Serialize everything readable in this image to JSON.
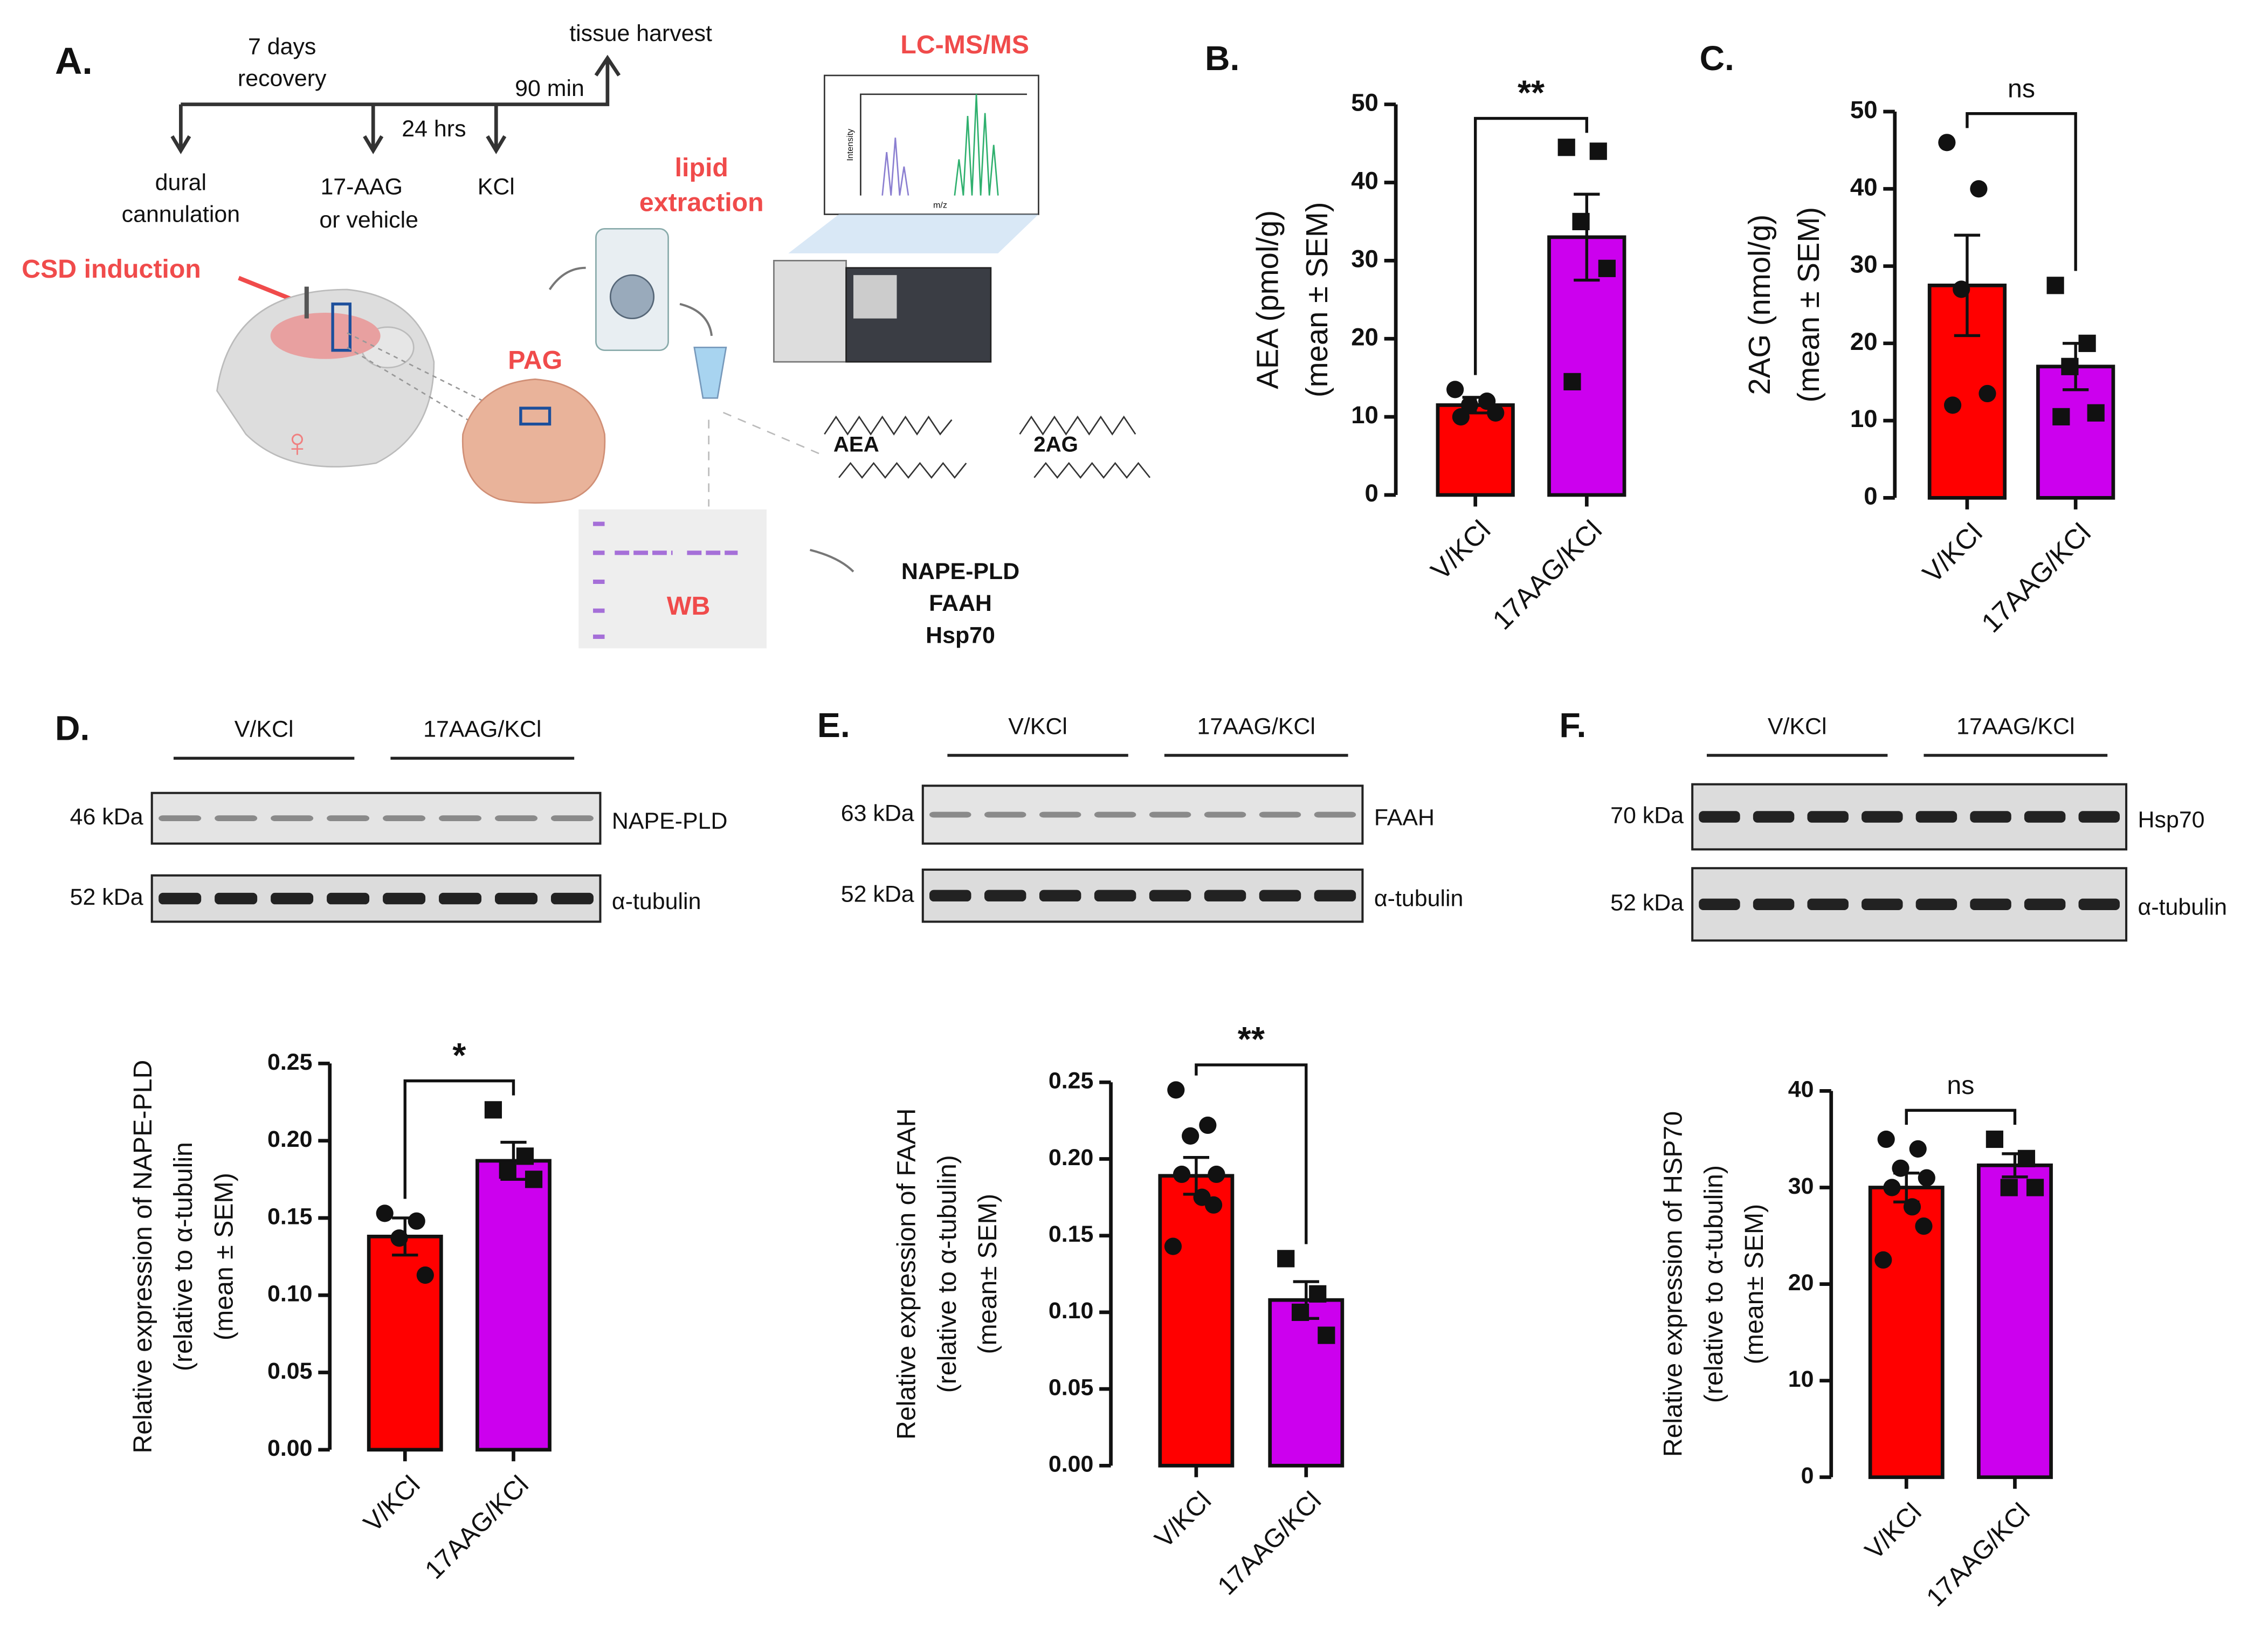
{
  "diagram": {
    "panel": "A.",
    "recovery_1": "7 days",
    "recovery_2": "recovery",
    "harvest": "tissue harvest",
    "hrs": "24 hrs",
    "min": "90 min",
    "cannulation_1": "dural",
    "cannulation_2": "cannulation",
    "drug_1": "17-AAG",
    "drug_2": "or vehicle",
    "kcl": "KCl",
    "csd": "CSD induction",
    "female": "♀",
    "pag": "PAG",
    "lipid_1": "lipid",
    "lipid_2": "extraction",
    "lcms": "LC-MS/MS",
    "intensity": "Intensity",
    "mz": "m/z",
    "aea": "AEA",
    "twoag": "2AG",
    "wb": "WB",
    "targets": [
      "NAPE-PLD",
      "FAAH",
      "Hsp70"
    ]
  },
  "blots": [
    {
      "panel": "D.",
      "groups": [
        "V/KCl",
        "17AAG/KCl"
      ],
      "rows": [
        {
          "kda": "46 kDa",
          "protein": "NAPE-PLD"
        },
        {
          "kda": "52 kDa",
          "protein": "α-tubulin"
        }
      ]
    },
    {
      "panel": "E.",
      "groups": [
        "V/KCl",
        "17AAG/KCl"
      ],
      "rows": [
        {
          "kda": "63 kDa",
          "protein": "FAAH"
        },
        {
          "kda": "52 kDa",
          "protein": "α-tubulin"
        }
      ]
    },
    {
      "panel": "F.",
      "groups": [
        "V/KCl",
        "17AAG/KCl"
      ],
      "rows": [
        {
          "kda": "70 kDa",
          "protein": "Hsp70"
        },
        {
          "kda": "52 kDa",
          "protein": "α-tubulin"
        }
      ]
    }
  ],
  "chart_data": [
    {
      "type": "bar",
      "panel": "B.",
      "ylabel": [
        "AEA (pmol/g)",
        "(mean ± SEM)"
      ],
      "categories": [
        "V/KCl",
        "17AAG/KCl"
      ],
      "values": [
        11.5,
        33
      ],
      "errors": [
        1,
        5.5
      ],
      "points": [
        [
          13.5,
          12,
          11.5,
          10.5,
          10
        ],
        [
          44.5,
          44,
          35,
          29,
          14.5
        ]
      ],
      "colors": [
        "#ff0000",
        "#cc00ee"
      ],
      "ylim": [
        0,
        50
      ],
      "yticks": [
        0,
        10,
        20,
        30,
        40,
        50
      ],
      "significance": "**"
    },
    {
      "type": "bar",
      "panel": "C.",
      "ylabel": [
        "2AG (nmol/g)",
        "(mean ± SEM)"
      ],
      "categories": [
        "V/KCl",
        "17AAG/KCl"
      ],
      "values": [
        27.5,
        17
      ],
      "errors": [
        6.5,
        3
      ],
      "points": [
        [
          46,
          40,
          27,
          13.5,
          12
        ],
        [
          27.5,
          20,
          17,
          11,
          10.5
        ]
      ],
      "colors": [
        "#ff0000",
        "#cc00ee"
      ],
      "ylim": [
        0,
        50
      ],
      "yticks": [
        0,
        10,
        20,
        30,
        40,
        50
      ],
      "significance": "ns"
    },
    {
      "type": "bar",
      "ylabel": [
        "Relative expression of NAPE-PLD",
        "(relative to α-tubulin",
        "(mean ± SEM)"
      ],
      "categories": [
        "V/KCl",
        "17AAG/KCl"
      ],
      "values": [
        0.138,
        0.187
      ],
      "errors": [
        0.012,
        0.012
      ],
      "points": [
        [
          0.153,
          0.148,
          0.137,
          0.113
        ],
        [
          0.22,
          0.19,
          0.181,
          0.175
        ]
      ],
      "colors": [
        "#ff0000",
        "#cc00ee"
      ],
      "ylim": [
        0,
        0.25
      ],
      "yticks": [
        {
          "value": 0,
          "label": "0.00"
        },
        0.05,
        {
          "value": 0.1,
          "label": "0.10"
        },
        0.15,
        {
          "value": 0.2,
          "label": "0.20"
        },
        0.25
      ],
      "significance": "*"
    },
    {
      "type": "bar",
      "ylabel": [
        "Relative expression of FAAH",
        "(relative to α-tubulin)",
        "(mean± SEM)"
      ],
      "categories": [
        "V/KCl",
        "17AAG/KCl"
      ],
      "values": [
        0.189,
        0.108
      ],
      "errors": [
        0.012,
        0.012
      ],
      "points": [
        [
          0.245,
          0.222,
          0.215,
          0.19,
          0.19,
          0.175,
          0.17,
          0.143
        ],
        [
          0.135,
          0.112,
          0.1,
          0.085
        ]
      ],
      "colors": [
        "#ff0000",
        "#cc00ee"
      ],
      "ylim": [
        0,
        0.25
      ],
      "yticks": [
        {
          "value": 0,
          "label": "0.00"
        },
        0.05,
        {
          "value": 0.1,
          "label": "0.10"
        },
        0.15,
        {
          "value": 0.2,
          "label": "0.20"
        },
        0.25
      ],
      "significance": "**"
    },
    {
      "type": "bar",
      "ylabel": [
        "Relative expression of HSP70",
        "(relative to α-tubulin)",
        "(mean± SEM)"
      ],
      "categories": [
        "V/KCl",
        "17AAG/KCl"
      ],
      "values": [
        30,
        32.3
      ],
      "errors": [
        1.5,
        1.2
      ],
      "points": [
        [
          35,
          34,
          32,
          31,
          30,
          28,
          26,
          22.5
        ],
        [
          35,
          33,
          30,
          30
        ]
      ],
      "colors": [
        "#ff0000",
        "#cc00ee"
      ],
      "ylim": [
        0,
        40
      ],
      "yticks": [
        0,
        10,
        20,
        30,
        40
      ],
      "significance": "ns"
    }
  ]
}
